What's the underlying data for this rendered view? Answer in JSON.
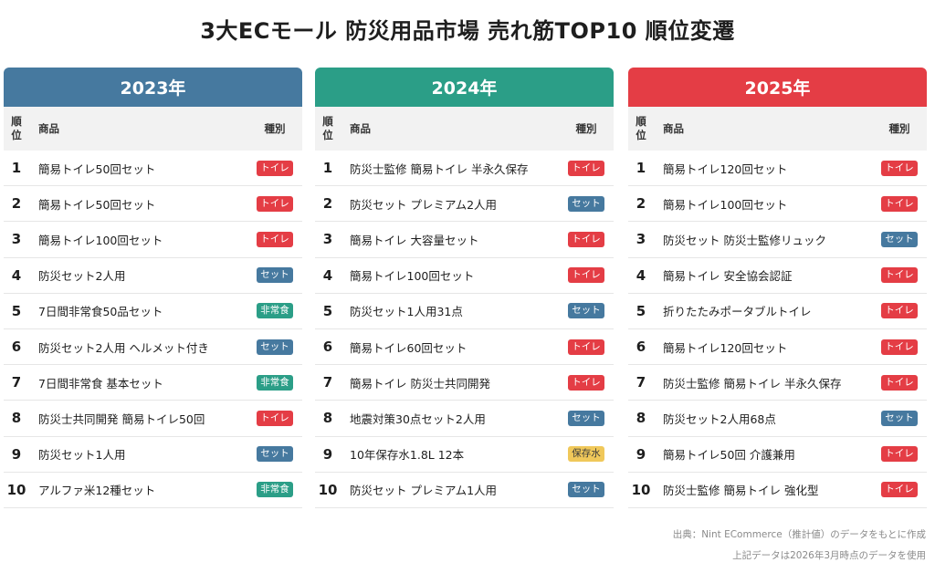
{
  "title": "3大ECモール 防災用品市場 売れ筋TOP10 順位変遷",
  "columns": {
    "rank": "順位",
    "name": "商品",
    "type": "種別"
  },
  "badge_colors": {
    "トイレ": {
      "bg": "#e43d45",
      "fg": "#ffffff"
    },
    "セット": {
      "bg": "#46799f",
      "fg": "#ffffff"
    },
    "非常食": {
      "bg": "#2b9e87",
      "fg": "#ffffff"
    },
    "保存水": {
      "bg": "#f0c85a",
      "fg": "#3a3a3a"
    }
  },
  "panels": [
    {
      "year": "2023年",
      "color": "#46799f",
      "items": [
        {
          "rank": "1",
          "name": "簡易トイレ50回セット",
          "type": "トイレ"
        },
        {
          "rank": "2",
          "name": "簡易トイレ50回セット",
          "type": "トイレ"
        },
        {
          "rank": "3",
          "name": "簡易トイレ100回セット",
          "type": "トイレ"
        },
        {
          "rank": "4",
          "name": "防災セット2人用",
          "type": "セット"
        },
        {
          "rank": "5",
          "name": "7日間非常食50品セット",
          "type": "非常食"
        },
        {
          "rank": "6",
          "name": "防災セット2人用 ヘルメット付き",
          "type": "セット"
        },
        {
          "rank": "7",
          "name": "7日間非常食 基本セット",
          "type": "非常食"
        },
        {
          "rank": "8",
          "name": "防災士共同開発 簡易トイレ50回",
          "type": "トイレ"
        },
        {
          "rank": "9",
          "name": "防災セット1人用",
          "type": "セット"
        },
        {
          "rank": "10",
          "name": "アルファ米12種セット",
          "type": "非常食"
        }
      ]
    },
    {
      "year": "2024年",
      "color": "#2b9e87",
      "items": [
        {
          "rank": "1",
          "name": "防災士監修 簡易トイレ 半永久保存",
          "type": "トイレ"
        },
        {
          "rank": "2",
          "name": "防災セット プレミアム2人用",
          "type": "セット"
        },
        {
          "rank": "3",
          "name": "簡易トイレ 大容量セット",
          "type": "トイレ"
        },
        {
          "rank": "4",
          "name": "簡易トイレ100回セット",
          "type": "トイレ"
        },
        {
          "rank": "5",
          "name": "防災セット1人用31点",
          "type": "セット"
        },
        {
          "rank": "6",
          "name": "簡易トイレ60回セット",
          "type": "トイレ"
        },
        {
          "rank": "7",
          "name": "簡易トイレ 防災士共同開発",
          "type": "トイレ"
        },
        {
          "rank": "8",
          "name": "地震対策30点セット2人用",
          "type": "セット"
        },
        {
          "rank": "9",
          "name": "10年保存水1.8L 12本",
          "type": "保存水"
        },
        {
          "rank": "10",
          "name": "防災セット プレミアム1人用",
          "type": "セット"
        }
      ]
    },
    {
      "year": "2025年",
      "color": "#e43d45",
      "items": [
        {
          "rank": "1",
          "name": "簡易トイレ120回セット",
          "type": "トイレ"
        },
        {
          "rank": "2",
          "name": "簡易トイレ100回セット",
          "type": "トイレ"
        },
        {
          "rank": "3",
          "name": "防災セット 防災士監修リュック",
          "type": "セット"
        },
        {
          "rank": "4",
          "name": "簡易トイレ 安全協会認証",
          "type": "トイレ"
        },
        {
          "rank": "5",
          "name": "折りたたみポータブルトイレ",
          "type": "トイレ"
        },
        {
          "rank": "6",
          "name": "簡易トイレ120回セット",
          "type": "トイレ"
        },
        {
          "rank": "7",
          "name": "防災士監修 簡易トイレ 半永久保存",
          "type": "トイレ"
        },
        {
          "rank": "8",
          "name": "防災セット2人用68点",
          "type": "セット"
        },
        {
          "rank": "9",
          "name": "簡易トイレ50回 介護兼用",
          "type": "トイレ"
        },
        {
          "rank": "10",
          "name": "防災士監修 簡易トイレ 強化型",
          "type": "トイレ"
        }
      ]
    }
  ],
  "footer": {
    "source": "出典：Nint ECommerce（推計値）のデータをもとに作成",
    "note": "上記データは2026年3月時点のデータを使用"
  }
}
